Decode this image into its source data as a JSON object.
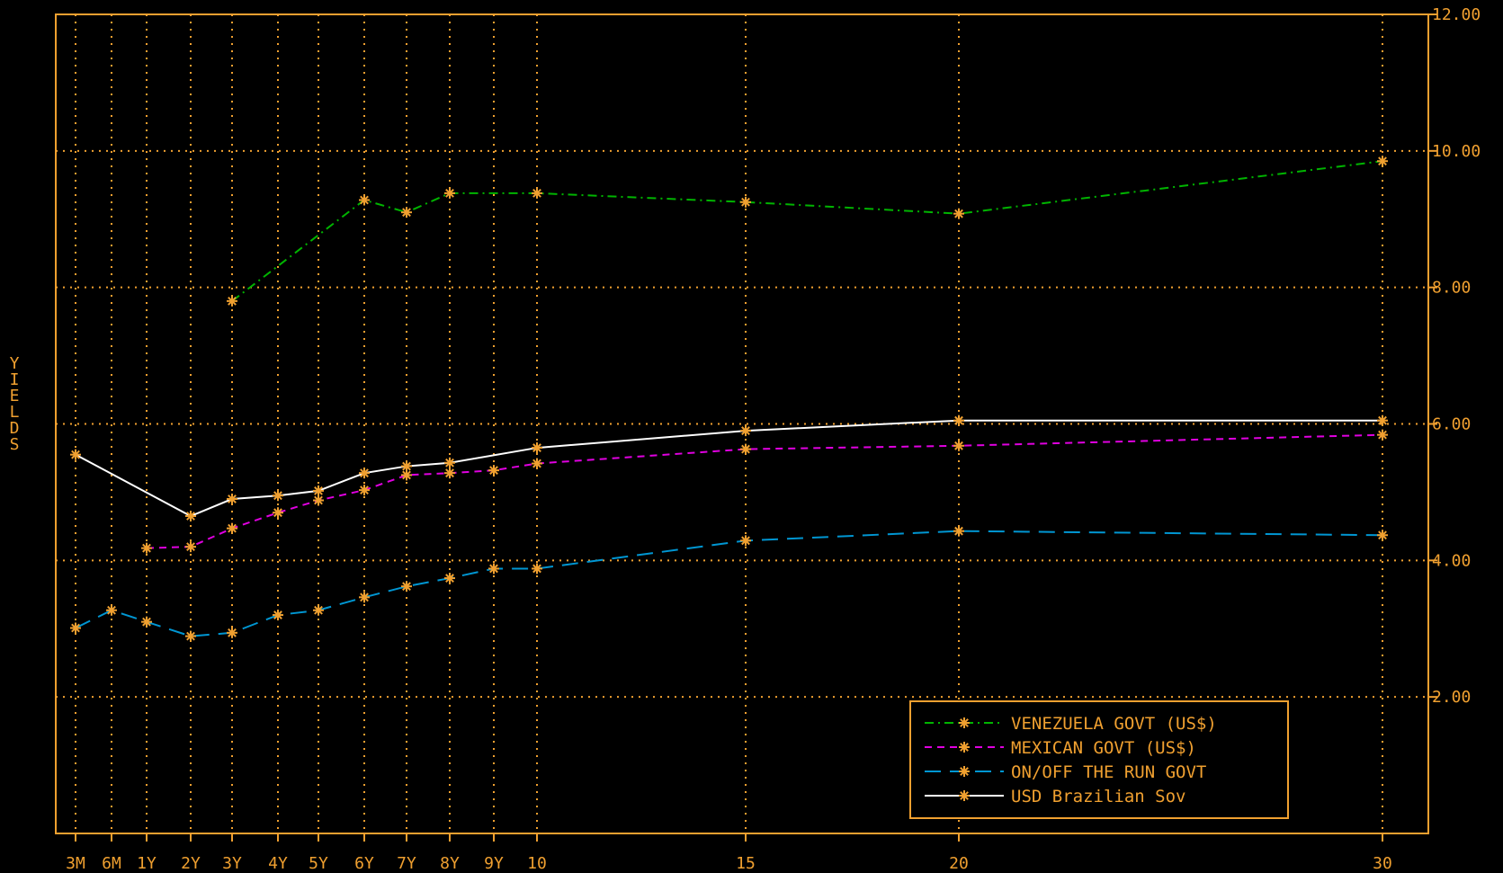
{
  "chart_data": {
    "type": "line",
    "ylabel": "YIELDS",
    "ylim": [
      0,
      12
    ],
    "yticks": [
      "2.00",
      "4.00",
      "6.00",
      "8.00",
      "10.00",
      "12.00"
    ],
    "x_tick_labels": [
      "3M",
      "6M",
      "1Y",
      "2Y",
      "3Y",
      "4Y",
      "5Y",
      "6Y",
      "7Y",
      "8Y",
      "9Y",
      "10",
      "15",
      "20",
      "30"
    ],
    "grid": true,
    "legend_position": "bottom-right",
    "series": [
      {
        "name": "VENEZUELA GOVT (US$)",
        "color": "#00b400",
        "dash": "dashdot",
        "points": [
          [
            "3Y",
            7.8
          ],
          [
            "6Y",
            9.28
          ],
          [
            "7Y",
            9.1
          ],
          [
            "8Y",
            9.38
          ],
          [
            "10",
            9.38
          ],
          [
            "15",
            9.25
          ],
          [
            "20",
            9.08
          ],
          [
            "30",
            9.85
          ]
        ]
      },
      {
        "name": "MEXICAN GOVT (US$)",
        "color": "#e000e0",
        "dash": "dash",
        "points": [
          [
            "1Y",
            4.18
          ],
          [
            "2Y",
            4.2
          ],
          [
            "3Y",
            4.47
          ],
          [
            "4Y",
            4.7
          ],
          [
            "5Y",
            4.88
          ],
          [
            "6Y",
            5.03
          ],
          [
            "7Y",
            5.25
          ],
          [
            "8Y",
            5.28
          ],
          [
            "9Y",
            5.32
          ],
          [
            "10",
            5.42
          ],
          [
            "15",
            5.63
          ],
          [
            "20",
            5.68
          ],
          [
            "30",
            5.84
          ]
        ]
      },
      {
        "name": "ON/OFF THE RUN GOVT",
        "color": "#0096d2",
        "dash": "longdash",
        "points": [
          [
            "3M",
            3.01
          ],
          [
            "6M",
            3.27
          ],
          [
            "1Y",
            3.1
          ],
          [
            "2Y",
            2.89
          ],
          [
            "3Y",
            2.94
          ],
          [
            "4Y",
            3.2
          ],
          [
            "5Y",
            3.27
          ],
          [
            "6Y",
            3.46
          ],
          [
            "7Y",
            3.62
          ],
          [
            "8Y",
            3.74
          ],
          [
            "9Y",
            3.88
          ],
          [
            "10",
            3.88
          ],
          [
            "15",
            4.29
          ],
          [
            "20",
            4.43
          ],
          [
            "30",
            4.37
          ]
        ]
      },
      {
        "name": "USD Brazilian Sov",
        "color": "#ffffff",
        "dash": "solid",
        "points": [
          [
            "3M",
            5.55
          ],
          [
            "2Y",
            4.65
          ],
          [
            "3Y",
            4.9
          ],
          [
            "4Y",
            4.95
          ],
          [
            "5Y",
            5.02
          ],
          [
            "6Y",
            5.28
          ],
          [
            "7Y",
            5.38
          ],
          [
            "8Y",
            5.43
          ],
          [
            "10",
            5.65
          ],
          [
            "15",
            5.9
          ],
          [
            "20",
            6.05
          ],
          [
            "30",
            6.05
          ]
        ]
      }
    ]
  },
  "colors": {
    "axis": "#f0a030",
    "grid": "#f0a030",
    "marker": "#f0a030",
    "background": "#000000"
  }
}
